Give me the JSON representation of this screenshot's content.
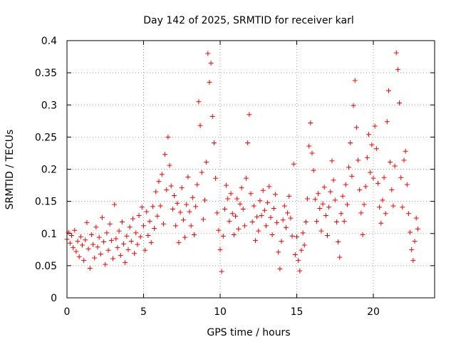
{
  "chart_data": {
    "type": "scatter",
    "title": "Day 142 of 2025, SRMTID for receiver karl",
    "xlabel": "GPS time / hours",
    "ylabel": "SRMTID / TECUs",
    "xlim": [
      0,
      24
    ],
    "ylim": [
      0,
      0.4
    ],
    "xticks": [
      0,
      5,
      10,
      15,
      20
    ],
    "xtick_labels": [
      "0",
      "5",
      "10",
      "15",
      "20"
    ],
    "yticks": [
      0,
      0.05,
      0.1,
      0.15,
      0.2,
      0.25,
      0.3,
      0.35,
      0.4
    ],
    "ytick_labels": [
      "0",
      "0.05",
      "0.1",
      "0.15",
      "0.2",
      "0.25",
      "0.3",
      "0.35",
      "0.4"
    ],
    "grid": true,
    "marker": "+",
    "marker_color": "#ff0000",
    "series": [
      {
        "name": "SRMTID",
        "points": [
          [
            0.0,
            0.091
          ],
          [
            0.1,
            0.102
          ],
          [
            0.2,
            0.085
          ],
          [
            0.3,
            0.097
          ],
          [
            0.4,
            0.078
          ],
          [
            0.5,
            0.105
          ],
          [
            0.6,
            0.072
          ],
          [
            0.7,
            0.088
          ],
          [
            0.8,
            0.064
          ],
          [
            0.9,
            0.095
          ],
          [
            1.0,
            0.082
          ],
          [
            1.1,
            0.058
          ],
          [
            1.2,
            0.09
          ],
          [
            1.3,
            0.117
          ],
          [
            1.4,
            0.076
          ],
          [
            1.5,
            0.046
          ],
          [
            1.6,
            0.098
          ],
          [
            1.7,
            0.083
          ],
          [
            1.8,
            0.062
          ],
          [
            1.9,
            0.11
          ],
          [
            2.0,
            0.079
          ],
          [
            2.1,
            0.094
          ],
          [
            2.2,
            0.068
          ],
          [
            2.3,
            0.125
          ],
          [
            2.4,
            0.087
          ],
          [
            2.5,
            0.052
          ],
          [
            2.6,
            0.101
          ],
          [
            2.7,
            0.074
          ],
          [
            2.8,
            0.115
          ],
          [
            2.9,
            0.089
          ],
          [
            3.0,
            0.061
          ],
          [
            3.1,
            0.145
          ],
          [
            3.2,
            0.092
          ],
          [
            3.3,
            0.078
          ],
          [
            3.4,
            0.104
          ],
          [
            3.5,
            0.066
          ],
          [
            3.6,
            0.118
          ],
          [
            3.7,
            0.084
          ],
          [
            3.8,
            0.055
          ],
          [
            3.9,
            0.096
          ],
          [
            4.0,
            0.075
          ],
          [
            4.1,
            0.11
          ],
          [
            4.2,
            0.088
          ],
          [
            4.3,
            0.123
          ],
          [
            4.4,
            0.069
          ],
          [
            4.5,
            0.101
          ],
          [
            4.6,
            0.083
          ],
          [
            4.7,
            0.128
          ],
          [
            4.8,
            0.095
          ],
          [
            4.9,
            0.141
          ],
          [
            5.0,
            0.112
          ],
          [
            5.1,
            0.074
          ],
          [
            5.2,
            0.134
          ],
          [
            5.3,
            0.097
          ],
          [
            5.4,
            0.119
          ],
          [
            5.5,
            0.086
          ],
          [
            5.6,
            0.142
          ],
          [
            5.7,
            0.108
          ],
          [
            5.8,
            0.165
          ],
          [
            5.9,
            0.127
          ],
          [
            6.0,
            0.181
          ],
          [
            6.1,
            0.143
          ],
          [
            6.2,
            0.192
          ],
          [
            6.3,
            0.115
          ],
          [
            6.4,
            0.223
          ],
          [
            6.5,
            0.168
          ],
          [
            6.6,
            0.25
          ],
          [
            6.7,
            0.206
          ],
          [
            6.8,
            0.174
          ],
          [
            6.9,
            0.138
          ],
          [
            7.0,
            0.159
          ],
          [
            7.1,
            0.112
          ],
          [
            7.2,
            0.147
          ],
          [
            7.3,
            0.086
          ],
          [
            7.4,
            0.133
          ],
          [
            7.5,
            0.171
          ],
          [
            7.6,
            0.121
          ],
          [
            7.7,
            0.094
          ],
          [
            7.8,
            0.145
          ],
          [
            7.9,
            0.188
          ],
          [
            8.0,
            0.134
          ],
          [
            8.1,
            0.112
          ],
          [
            8.2,
            0.156
          ],
          [
            8.3,
            0.098
          ],
          [
            8.4,
            0.142
          ],
          [
            8.5,
            0.176
          ],
          [
            8.6,
            0.305
          ],
          [
            8.7,
            0.268
          ],
          [
            8.8,
            0.195
          ],
          [
            8.9,
            0.122
          ],
          [
            9.0,
            0.152
          ],
          [
            9.1,
            0.211
          ],
          [
            9.2,
            0.38
          ],
          [
            9.3,
            0.335
          ],
          [
            9.4,
            0.365
          ],
          [
            9.5,
            0.282
          ],
          [
            9.6,
            0.241
          ],
          [
            9.7,
            0.186
          ],
          [
            9.8,
            0.132
          ],
          [
            9.9,
            0.105
          ],
          [
            10.0,
            0.075
          ],
          [
            10.1,
            0.041
          ],
          [
            10.2,
            0.096
          ],
          [
            10.3,
            0.138
          ],
          [
            10.4,
            0.175
          ],
          [
            10.5,
            0.154
          ],
          [
            10.6,
            0.119
          ],
          [
            10.7,
            0.162
          ],
          [
            10.8,
            0.131
          ],
          [
            10.9,
            0.098
          ],
          [
            11.0,
            0.127
          ],
          [
            11.1,
            0.154
          ],
          [
            11.2,
            0.107
          ],
          [
            11.3,
            0.146
          ],
          [
            11.4,
            0.171
          ],
          [
            11.5,
            0.138
          ],
          [
            11.6,
            0.112
          ],
          [
            11.7,
            0.186
          ],
          [
            11.8,
            0.241
          ],
          [
            11.9,
            0.285
          ],
          [
            12.0,
            0.162
          ],
          [
            12.1,
            0.118
          ],
          [
            12.2,
            0.143
          ],
          [
            12.3,
            0.089
          ],
          [
            12.4,
            0.126
          ],
          [
            12.5,
            0.104
          ],
          [
            12.6,
            0.151
          ],
          [
            12.7,
            0.128
          ],
          [
            12.8,
            0.167
          ],
          [
            12.9,
            0.136
          ],
          [
            13.0,
            0.112
          ],
          [
            13.1,
            0.148
          ],
          [
            13.2,
            0.173
          ],
          [
            13.3,
            0.125
          ],
          [
            13.4,
            0.098
          ],
          [
            13.5,
            0.139
          ],
          [
            13.6,
            0.161
          ],
          [
            13.7,
            0.117
          ],
          [
            13.8,
            0.071
          ],
          [
            13.9,
            0.045
          ],
          [
            14.0,
            0.088
          ],
          [
            14.1,
            0.121
          ],
          [
            14.2,
            0.143
          ],
          [
            14.3,
            0.109
          ],
          [
            14.4,
            0.132
          ],
          [
            14.5,
            0.158
          ],
          [
            14.6,
            0.124
          ],
          [
            14.7,
            0.096
          ],
          [
            14.8,
            0.208
          ],
          [
            14.9,
            0.067
          ],
          [
            15.0,
            0.095
          ],
          [
            15.1,
            0.058
          ],
          [
            15.2,
            0.042
          ],
          [
            15.3,
            0.074
          ],
          [
            15.4,
            0.101
          ],
          [
            15.5,
            0.082
          ],
          [
            15.6,
            0.118
          ],
          [
            15.7,
            0.154
          ],
          [
            15.8,
            0.236
          ],
          [
            15.9,
            0.272
          ],
          [
            16.0,
            0.225
          ],
          [
            16.1,
            0.198
          ],
          [
            16.2,
            0.153
          ],
          [
            16.3,
            0.119
          ],
          [
            16.4,
            0.162
          ],
          [
            16.5,
            0.139
          ],
          [
            16.6,
            0.104
          ],
          [
            16.7,
            0.146
          ],
          [
            16.8,
            0.172
          ],
          [
            16.9,
            0.128
          ],
          [
            17.0,
            0.097
          ],
          [
            17.1,
            0.141
          ],
          [
            17.2,
            0.165
          ],
          [
            17.3,
            0.213
          ],
          [
            17.4,
            0.183
          ],
          [
            17.5,
            0.152
          ],
          [
            17.6,
            0.118
          ],
          [
            17.7,
            0.087
          ],
          [
            17.8,
            0.063
          ],
          [
            17.9,
            0.131
          ],
          [
            18.0,
            0.158
          ],
          [
            18.1,
            0.119
          ],
          [
            18.2,
            0.176
          ],
          [
            18.3,
            0.145
          ],
          [
            18.4,
            0.203
          ],
          [
            18.5,
            0.241
          ],
          [
            18.6,
            0.189
          ],
          [
            18.7,
            0.299
          ],
          [
            18.8,
            0.338
          ],
          [
            18.9,
            0.265
          ],
          [
            19.0,
            0.214
          ],
          [
            19.1,
            0.168
          ],
          [
            19.2,
            0.132
          ],
          [
            19.3,
            0.098
          ],
          [
            19.4,
            0.145
          ],
          [
            19.5,
            0.173
          ],
          [
            19.6,
            0.218
          ],
          [
            19.7,
            0.254
          ],
          [
            19.8,
            0.195
          ],
          [
            19.9,
            0.238
          ],
          [
            20.0,
            0.186
          ],
          [
            20.1,
            0.267
          ],
          [
            20.2,
            0.232
          ],
          [
            20.3,
            0.178
          ],
          [
            20.4,
            0.141
          ],
          [
            20.5,
            0.116
          ],
          [
            20.6,
            0.152
          ],
          [
            20.7,
            0.187
          ],
          [
            20.8,
            0.131
          ],
          [
            20.9,
            0.274
          ],
          [
            21.0,
            0.322
          ],
          [
            21.1,
            0.211
          ],
          [
            21.2,
            0.168
          ],
          [
            21.3,
            0.143
          ],
          [
            21.4,
            0.205
          ],
          [
            21.5,
            0.381
          ],
          [
            21.6,
            0.355
          ],
          [
            21.7,
            0.303
          ],
          [
            21.8,
            0.187
          ],
          [
            21.9,
            0.141
          ],
          [
            22.0,
            0.214
          ],
          [
            22.1,
            0.228
          ],
          [
            22.2,
            0.176
          ],
          [
            22.3,
            0.131
          ],
          [
            22.4,
            0.102
          ],
          [
            22.5,
            0.075
          ],
          [
            22.6,
            0.058
          ],
          [
            22.7,
            0.088
          ],
          [
            22.8,
            0.124
          ],
          [
            22.9,
            0.107
          ]
        ]
      }
    ]
  }
}
